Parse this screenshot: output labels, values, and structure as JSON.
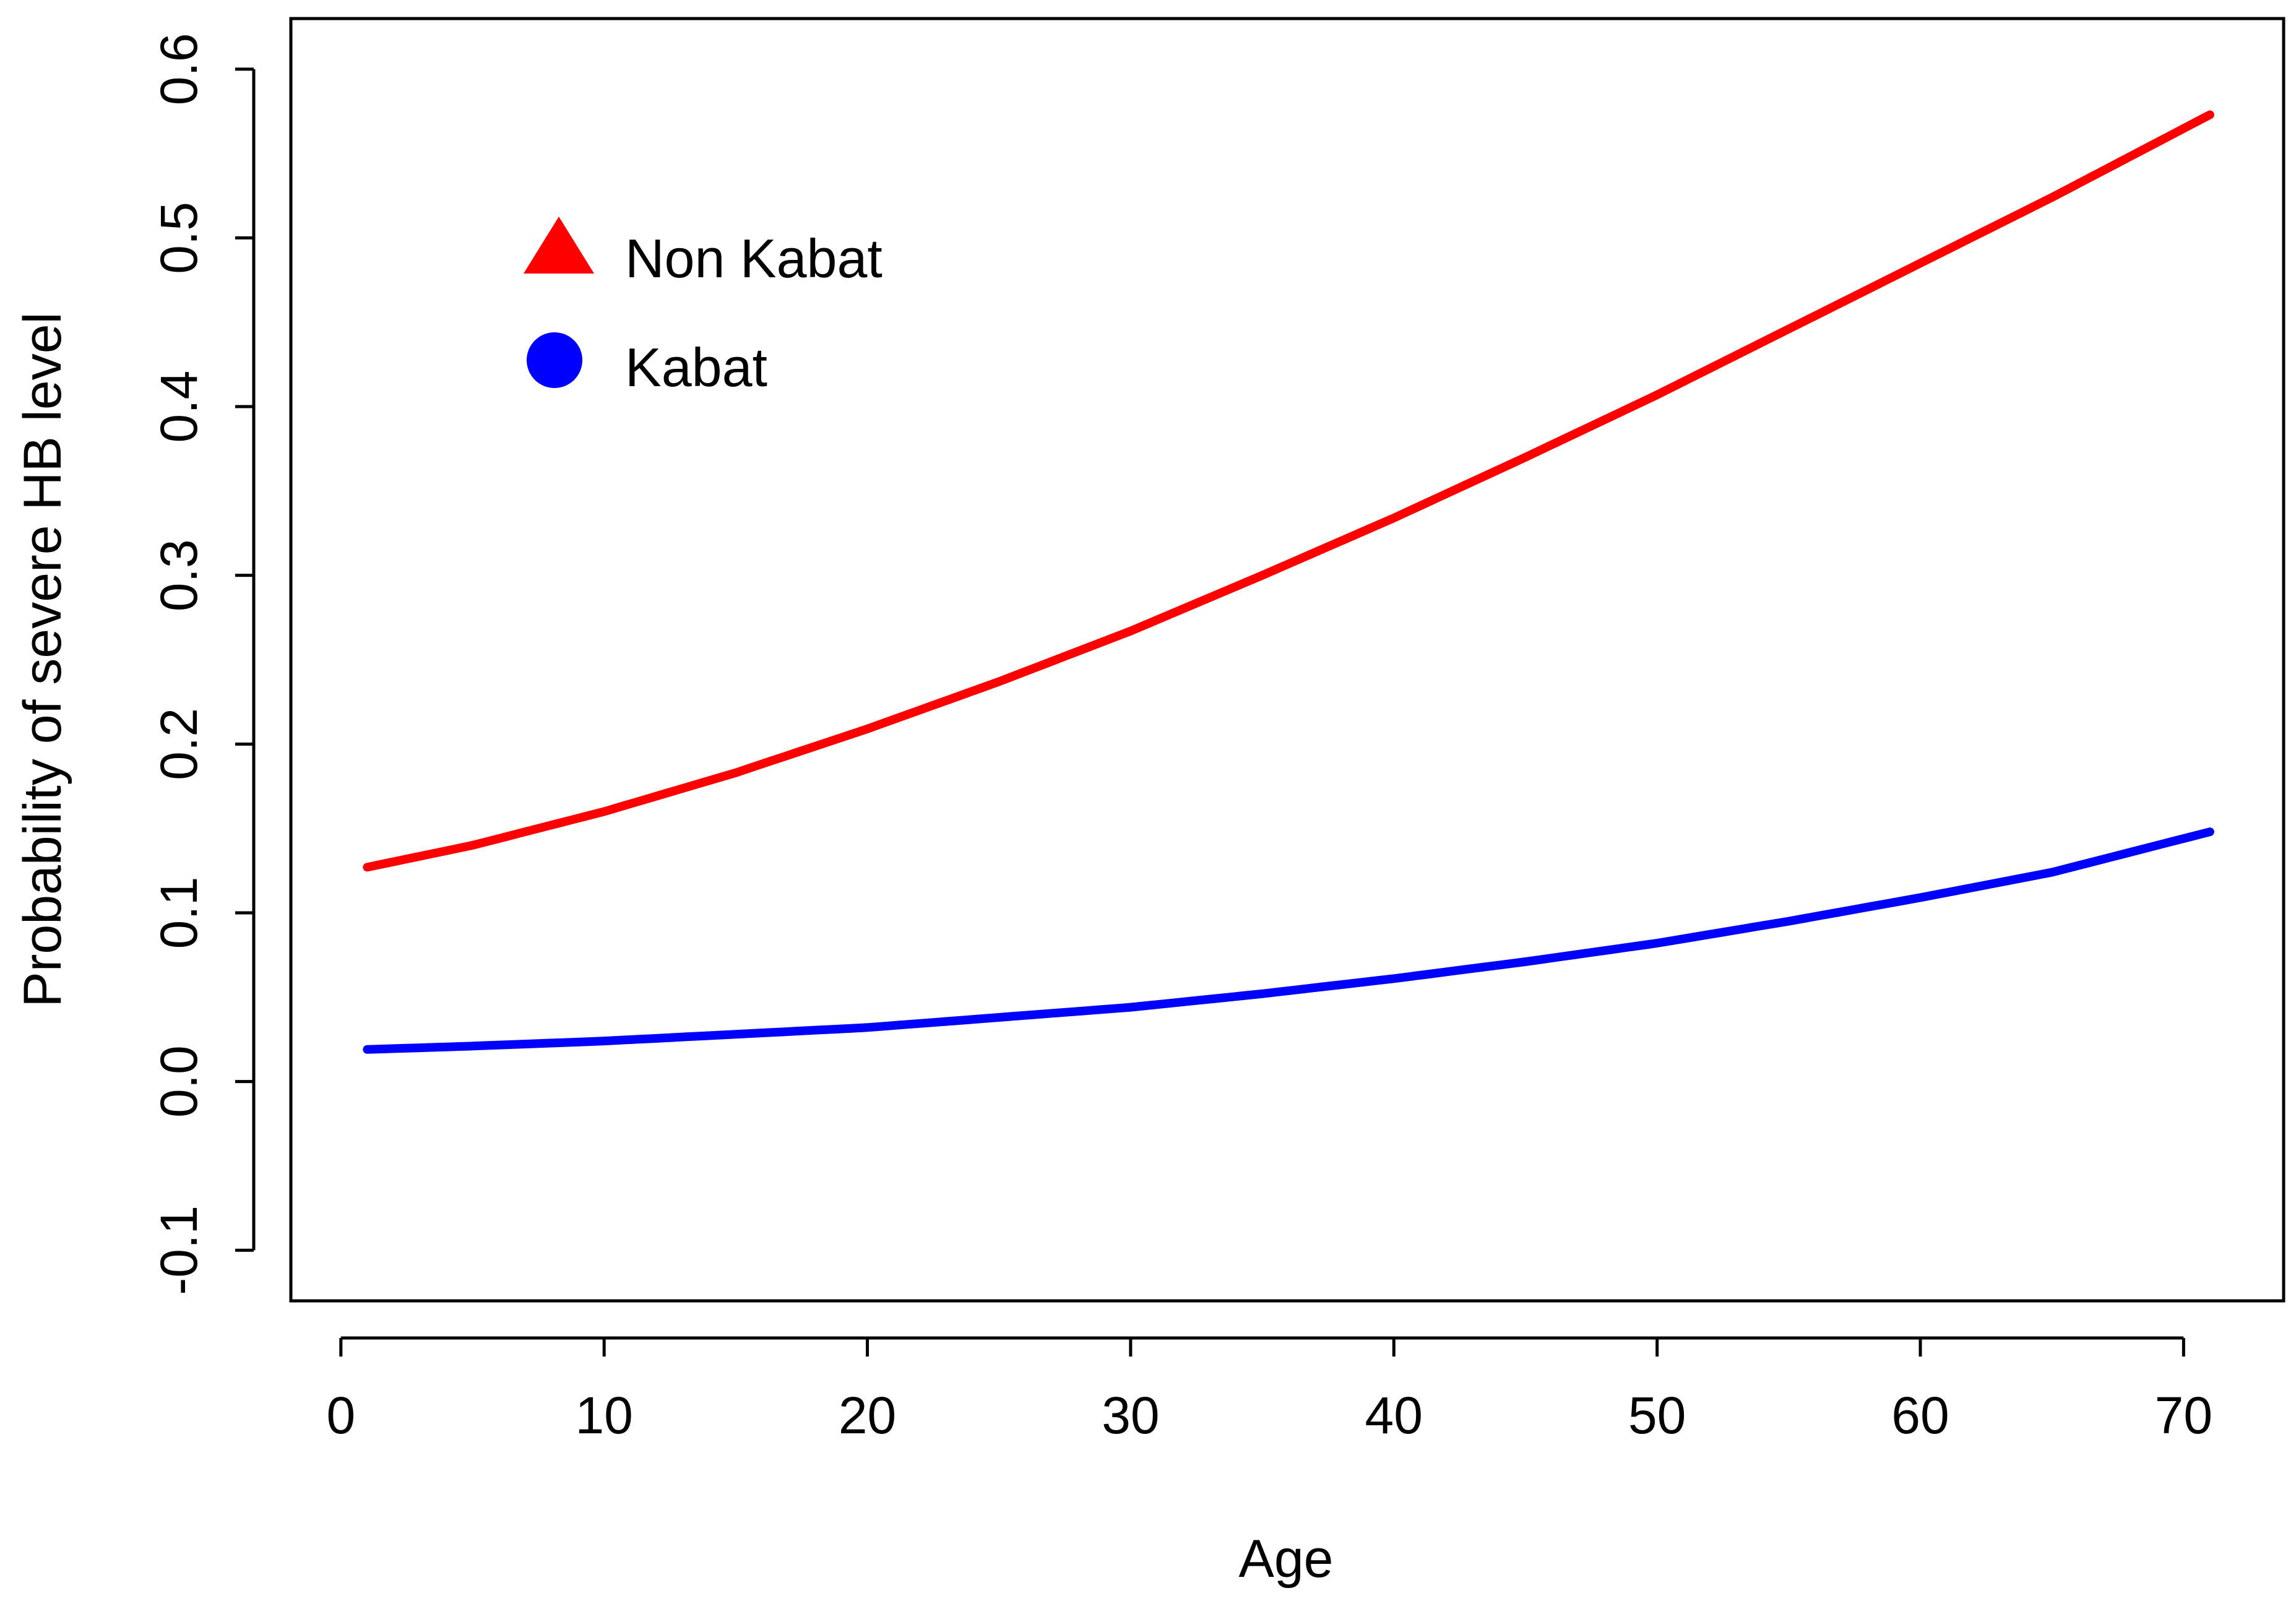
{
  "chart_data": {
    "type": "line",
    "title": "",
    "xlabel": "Age",
    "ylabel": "Probability of severe HB level",
    "xlim": [
      -1.9,
      73.8
    ],
    "ylim": [
      -0.13,
      0.63
    ],
    "x_ticks": [
      0,
      10,
      20,
      30,
      40,
      50,
      60,
      70
    ],
    "y_ticks": [
      -0.1,
      0.0,
      0.1,
      0.2,
      0.3,
      0.4,
      0.5,
      0.6
    ],
    "x_tick_labels": [
      "0",
      "10",
      "20",
      "30",
      "40",
      "50",
      "60",
      "70"
    ],
    "y_tick_labels": [
      "-0.1",
      "0.0",
      "0.1",
      "0.2",
      "0.3",
      "0.4",
      "0.5",
      "0.6"
    ],
    "grid": false,
    "legend_position": "top-left",
    "series": [
      {
        "name": "Non Kabat",
        "color": "#ff0000",
        "marker": "triangle",
        "x": [
          1,
          5,
          10,
          15,
          20,
          25,
          30,
          35,
          40,
          45,
          50,
          55,
          60,
          65,
          71
        ],
        "y": [
          0.127,
          0.14,
          0.16,
          0.183,
          0.209,
          0.237,
          0.267,
          0.3,
          0.334,
          0.37,
          0.407,
          0.446,
          0.485,
          0.524,
          0.573
        ]
      },
      {
        "name": "Kabat",
        "color": "#0000ff",
        "marker": "circle",
        "x": [
          1,
          5,
          10,
          15,
          20,
          25,
          30,
          35,
          40,
          45,
          50,
          55,
          60,
          65,
          71
        ],
        "y": [
          0.019,
          0.021,
          0.024,
          0.028,
          0.032,
          0.038,
          0.044,
          0.052,
          0.061,
          0.071,
          0.082,
          0.095,
          0.109,
          0.124,
          0.148
        ]
      }
    ]
  }
}
